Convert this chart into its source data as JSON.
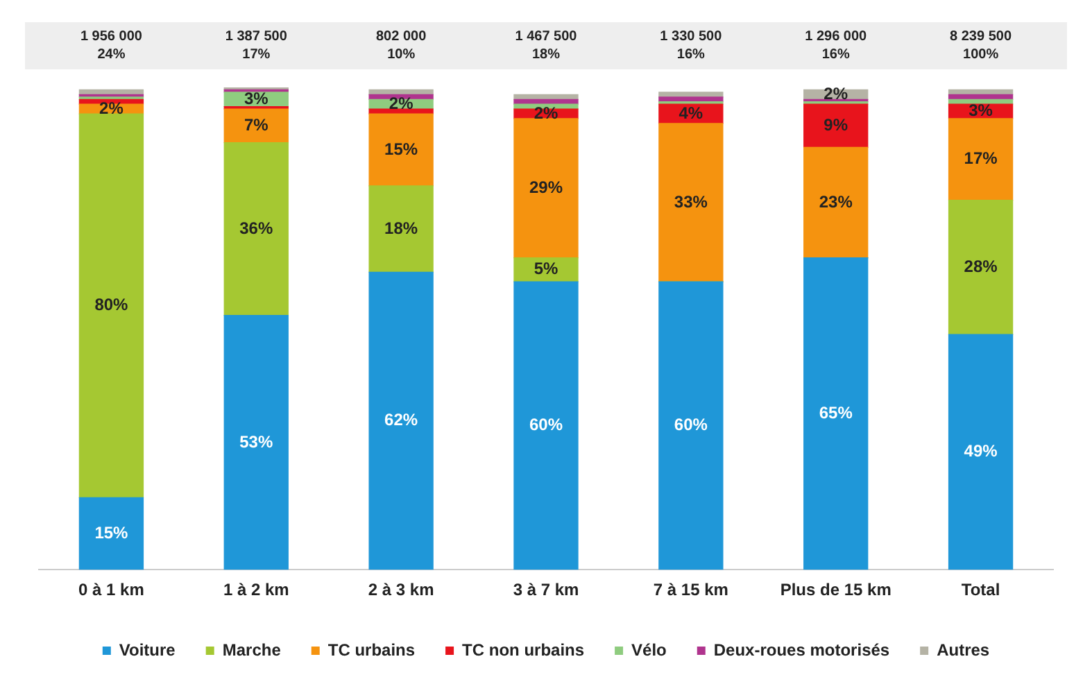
{
  "chart_data": {
    "type": "bar",
    "stacked": true,
    "legend": "bottom",
    "grid": false,
    "categories": [
      "0 à 1 km",
      "1 à 2 km",
      "2 à 3 km",
      "3 à 7 km",
      "7 à 15 km",
      "Plus de 15 km",
      "Total"
    ],
    "annotations": [
      "1 956 000\n24%",
      "1 387 500\n17%",
      "802 000\n10%",
      "1 467 500\n18%",
      "1 330 500\n16%",
      "1 296 000\n16%",
      "8 239 500\n100%"
    ],
    "series": [
      {
        "name": "Voiture",
        "color": "#1f97d8",
        "values": [
          15,
          53,
          62,
          60,
          60,
          65,
          49
        ],
        "value_labels": [
          "15%",
          "53%",
          "62%",
          "60%",
          "60%",
          "65%",
          "49%"
        ]
      },
      {
        "name": "Marche",
        "color": "#a5c832",
        "values": [
          80,
          36,
          18,
          5,
          0,
          0,
          28
        ],
        "value_labels": [
          "80%",
          "36%",
          "18%",
          "5%",
          null,
          null,
          "28%"
        ]
      },
      {
        "name": "TC urbains",
        "color": "#f5930f",
        "values": [
          2,
          7,
          15,
          29,
          33,
          23,
          17
        ],
        "value_labels": [
          "2%",
          "7%",
          "15%",
          "29%",
          "33%",
          "23%",
          "17%"
        ]
      },
      {
        "name": "TC non urbains",
        "color": "#e8141c",
        "values": [
          1,
          0.5,
          1,
          2,
          4,
          9,
          3
        ],
        "value_labels": [
          null,
          null,
          null,
          "2%",
          "4%",
          "9%",
          "3%"
        ]
      },
      {
        "name": "Vélo",
        "color": "#8fcc7f",
        "values": [
          0.5,
          3,
          2,
          1,
          0.5,
          0.5,
          1
        ],
        "value_labels": [
          null,
          "3%",
          "2%",
          null,
          null,
          null,
          null
        ]
      },
      {
        "name": "Deux-roues motorisés",
        "color": "#b0348e",
        "values": [
          0.5,
          0.5,
          1,
          1,
          1,
          0.5,
          1
        ],
        "value_labels": [
          null,
          null,
          null,
          null,
          null,
          null,
          null
        ]
      },
      {
        "name": "Autres",
        "color": "#b5b3a5",
        "values": [
          1,
          0.5,
          1,
          1,
          1,
          2,
          1
        ],
        "value_labels": [
          null,
          null,
          null,
          null,
          null,
          "2%",
          null
        ]
      }
    ]
  }
}
